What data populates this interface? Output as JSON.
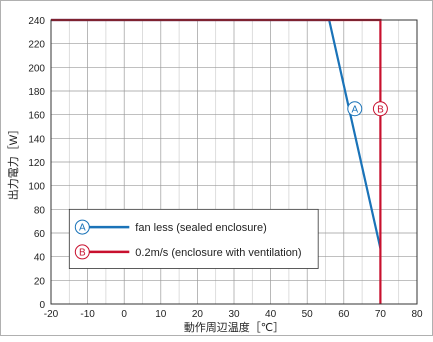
{
  "chart_data": {
    "type": "line",
    "title": "",
    "xlabel": "動作周辺温度［℃］",
    "ylabel": "出力電力［W］",
    "xlim": [
      -20,
      80
    ],
    "ylim": [
      0,
      240
    ],
    "x_ticks": [
      -20,
      -10,
      0,
      10,
      20,
      30,
      40,
      50,
      60,
      70,
      80
    ],
    "y_ticks": [
      0,
      20,
      40,
      60,
      80,
      100,
      120,
      140,
      160,
      180,
      200,
      220,
      240
    ],
    "grid": true,
    "legend_position": "bottom-left",
    "series": [
      {
        "key": "A",
        "name": "fan less (sealed enclosure)",
        "color": "#1a73b8",
        "x": [
          -20,
          56,
          70
        ],
        "y": [
          240,
          240,
          47
        ]
      },
      {
        "key": "B",
        "name": "0.2m/s (enclosure with ventilation)",
        "color": "#c8102e",
        "x": [
          -20,
          70,
          70
        ],
        "y": [
          240,
          240,
          0
        ]
      }
    ],
    "curve_markers": [
      {
        "key": "A",
        "x": 63,
        "y": 165
      },
      {
        "key": "B",
        "x": 70,
        "y": 165
      }
    ]
  }
}
